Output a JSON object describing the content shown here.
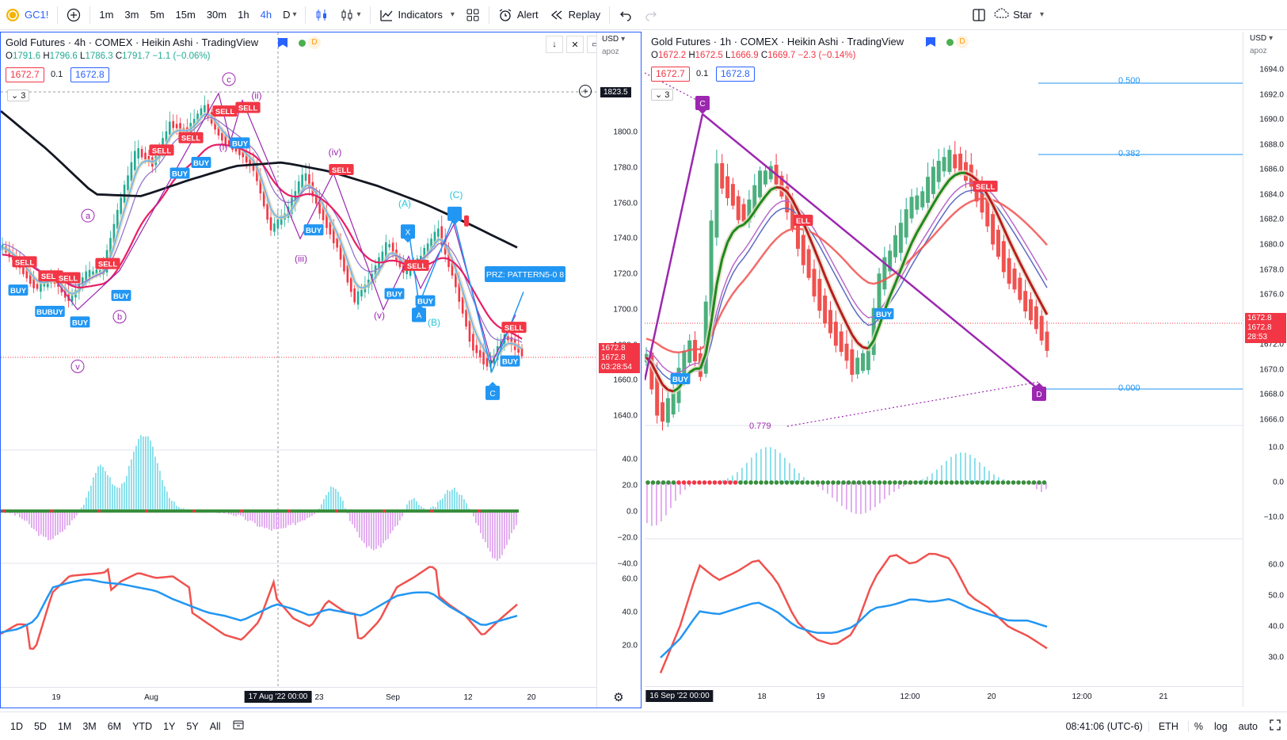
{
  "toolbar": {
    "symbol": "GC1!",
    "intervals": [
      "1m",
      "3m",
      "5m",
      "15m",
      "30m",
      "1h",
      "4h",
      "D"
    ],
    "active_interval": "4h",
    "indicators_label": "Indicators",
    "alert_label": "Alert",
    "replay_label": "Replay",
    "star_label": "Star"
  },
  "left_chart": {
    "title": "Gold Futures · 4h · COMEX · Heikin Ashi · TradingView",
    "ohlc": {
      "o": "1791.6",
      "h": "1796.6",
      "l": "1786.3",
      "c": "1791.7",
      "chg": "−1.1 (−0.06%)"
    },
    "o_key": "O",
    "h_key": "H",
    "l_key": "L",
    "c_key": "C",
    "bid": "1672.7",
    "spread": "0.1",
    "ask": "1672.8",
    "collapse": "3",
    "currency": "USD",
    "scale_mode": "apoz",
    "price_ticks": [
      "1800.0",
      "1780.0",
      "1760.0",
      "1740.0",
      "1720.0",
      "1700.0",
      "1680.0",
      "1660.0",
      "1640.0"
    ],
    "crosshair_price": "1823.5",
    "last_price": "1672.8",
    "last_price2": "1672.8",
    "countdown": "03:28:54",
    "osc1_ticks": [
      "40.0",
      "20.0",
      "0.0",
      "−20.0",
      "−40.0"
    ],
    "osc2_ticks": [
      "60.0",
      "40.0",
      "20.0"
    ],
    "x_ticks": [
      "19",
      "Aug",
      "23",
      "Sep",
      "12",
      "20"
    ],
    "x_highlight": "17 Aug '22   00:00",
    "wave_labels": {
      "c": "c",
      "ii": "(ii)",
      "iv": "(iv)",
      "iii": "(iii)",
      "v": "(v)",
      "i": "(i)",
      "a": "a",
      "b": "b",
      "vv": "v",
      "A": "(A)",
      "B": "(B)",
      "C": "(C)"
    },
    "pattern_label": "PRZ: PATTERN5-0 8",
    "x_point": "X",
    "a_point": "A",
    "c_point": "C",
    "signals": {
      "buy": "BUY",
      "sell": "SELL",
      "bubuy": "BUBUY"
    }
  },
  "right_chart": {
    "title": "Gold Futures · 1h · COMEX · Heikin Ashi · TradingView",
    "ohlc": {
      "o": "1672.2",
      "h": "1672.5",
      "l": "1666.9",
      "c": "1669.7",
      "chg": "−2.3 (−0.14%)"
    },
    "o_key": "O",
    "h_key": "H",
    "l_key": "L",
    "c_key": "C",
    "bid": "1672.7",
    "spread": "0.1",
    "ask": "1672.8",
    "collapse": "3",
    "currency": "USD",
    "scale_mode": "apoz",
    "price_ticks": [
      "1694.0",
      "1692.0",
      "1690.0",
      "1688.0",
      "1686.0",
      "1684.0",
      "1682.0",
      "1680.0",
      "1678.0",
      "1676.0",
      "1674.0",
      "1672.0",
      "1670.0",
      "1668.0",
      "1666.0"
    ],
    "last_price": "1672.8",
    "last_price2": "1672.8",
    "countdown": "28:53",
    "osc1_ticks": [
      "10.0",
      "0.0",
      "−10.0"
    ],
    "osc2_ticks": [
      "60.0",
      "50.0",
      "40.0",
      "30.0"
    ],
    "x_ticks": [
      "18",
      "19",
      "12:00",
      "20",
      "12:00",
      "21"
    ],
    "x_highlight": "16 Sep '22   00:00",
    "fib": [
      "0.500",
      "0.382",
      "0.000"
    ],
    "fib_ratio": "0.779",
    "c_point": "C",
    "d_point": "D",
    "signals": {
      "buy": "BUY",
      "sell": "SELL",
      "ell": "ELL"
    }
  },
  "bottombar": {
    "ranges": [
      "1D",
      "5D",
      "1M",
      "3M",
      "6M",
      "YTD",
      "1Y",
      "5Y",
      "All"
    ],
    "time": "08:41:06 (UTC-6)",
    "session": "ETH",
    "percent": "%",
    "log": "log",
    "auto": "auto"
  },
  "colors": {
    "accent": "#2962ff",
    "up": "#22ab94",
    "down": "#f23645",
    "wave": "#9c27b0"
  }
}
